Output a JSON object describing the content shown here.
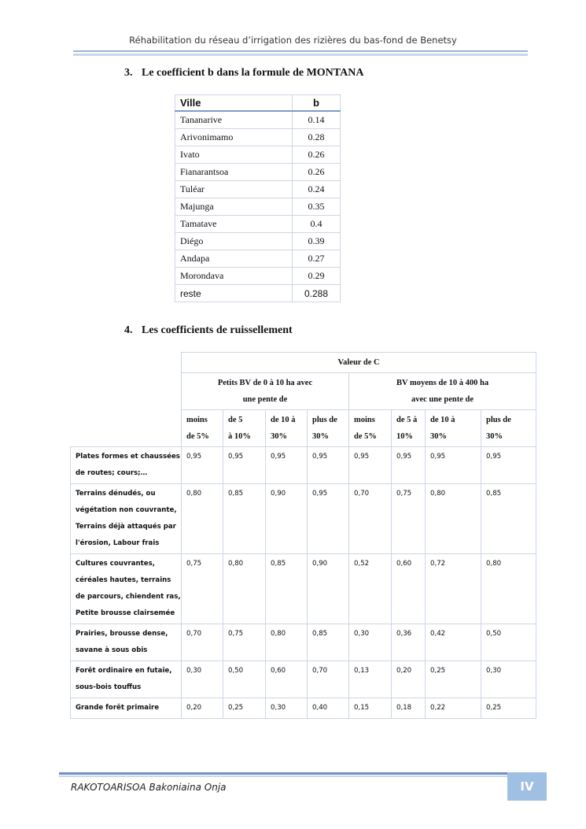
{
  "header": {
    "title": "Réhabilitation du réseau d’irrigation des rizières du bas-fond de Benetsy"
  },
  "sections": [
    {
      "number": "3.",
      "title": "Le coefficient b dans la formule de MONTANA"
    },
    {
      "number": "4.",
      "title": "Les coefficients de ruissellement"
    }
  ],
  "table1": {
    "headers": [
      "Ville",
      "b"
    ],
    "rows": [
      [
        "Tananarive",
        "0.14"
      ],
      [
        "Arivonimamo",
        "0.28"
      ],
      [
        "Ivato",
        "0.26"
      ],
      [
        "Fianarantsoa",
        "0.26"
      ],
      [
        "Tuléar",
        "0.24"
      ],
      [
        "Majunga",
        "0.35"
      ],
      [
        "Tamatave",
        "0.4"
      ],
      [
        "Diégo",
        "0.39"
      ],
      [
        "Andapa",
        "0.27"
      ],
      [
        "Morondava",
        "0.29"
      ],
      [
        "reste",
        "0.288"
      ]
    ]
  },
  "table2": {
    "title": "Valeur de C",
    "groups": [
      [
        "Petits BV de 0 à 10 ha avec",
        "une pente de"
      ],
      [
        "BV moyens de 10 à 400 ha",
        "avec une pente de"
      ]
    ],
    "slopes": [
      [
        "moins",
        "de 5%"
      ],
      [
        "de 5",
        "à 10%"
      ],
      [
        "de 10 à",
        "30%"
      ],
      [
        "plus de",
        "30%"
      ],
      [
        "moins",
        "de 5%"
      ],
      [
        "de 5 à",
        "10%"
      ],
      [
        "de 10 à",
        "30%"
      ],
      [
        "plus de",
        "30%"
      ]
    ],
    "rows": [
      {
        "label": [
          "Plates formes et chaussées",
          "de routes; cours;…"
        ],
        "values": [
          "0,95",
          "0,95",
          "0,95",
          "0,95",
          "0,95",
          "0,95",
          "0,95",
          "0,95"
        ]
      },
      {
        "label": [
          "Terrains dénudés, ou",
          "végétation non couvrante,",
          "Terrains déjà attaqués par",
          "l'érosion, Labour frais"
        ],
        "values": [
          "0,80",
          "0,85",
          "0,90",
          "0,95",
          "0,70",
          "0,75",
          "0,80",
          "0,85"
        ]
      },
      {
        "label": [
          "Cultures couvrantes,",
          "céréales hautes, terrains",
          "de parcours, chiendent ras,",
          "Petite brousse clairsemée"
        ],
        "values": [
          "0,75",
          "0,80",
          "0,85",
          "0,90",
          "0,52",
          "0,60",
          "0,72",
          "0,80"
        ]
      },
      {
        "label": [
          "Prairies, brousse dense,",
          "savane à sous obis"
        ],
        "values": [
          "0,70",
          "0,75",
          "0,80",
          "0,85",
          "0,30",
          "0,36",
          "0,42",
          "0,50"
        ]
      },
      {
        "label": [
          "Forêt ordinaire en futaie,",
          "sous-bois touffus"
        ],
        "values": [
          "0,30",
          "0,50",
          "0,60",
          "0,70",
          "0,13",
          "0,20",
          "0,25",
          "0,30"
        ]
      },
      {
        "label": [
          "Grande forêt primaire"
        ],
        "values": [
          "0,20",
          "0,25",
          "0,30",
          "0,40",
          "0,15",
          "0,18",
          "0,22",
          "0,25"
        ]
      }
    ]
  },
  "footer": {
    "author": "RAKOTOARISOA Bakoniaina Onja",
    "page": "IV"
  }
}
